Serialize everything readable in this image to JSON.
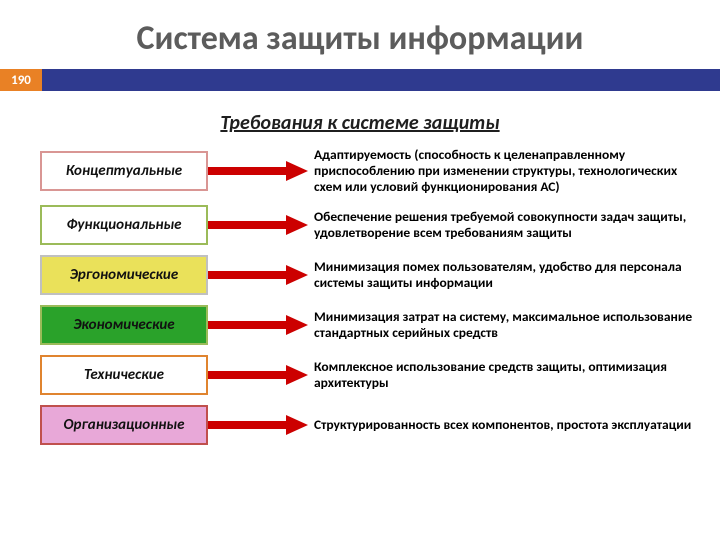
{
  "title": "Система защиты информации",
  "page_number": "190",
  "badge_bg": "#e98125",
  "badge_bar_bg": "#2f3a8f",
  "subtitle": "Требования к системе защиты",
  "arrow_color": "#cc0000",
  "rows": [
    {
      "label": "Концептуальные",
      "border": "#d99694",
      "fill": "#ffffff",
      "desc": "Адаптируемость (способность к целенаправленному приспособлению при изменении структуры, технологических схем или условий функционирования АС)"
    },
    {
      "label": "Функциональные",
      "border": "#9bbb59",
      "fill": "#ffffff",
      "desc": "Обеспечение решения требуемой совокупности задач защиты, удовлетворение всем требованиям защиты"
    },
    {
      "label": "Эргономические",
      "border": "#c0c0c0",
      "fill": "#eae15a",
      "desc": "Минимизация помех пользователям, удобство для персонала системы защиты информации"
    },
    {
      "label": "Экономические",
      "border": "#9bbb59",
      "fill": "#2aa22a",
      "desc": "Минимизация затрат на систему, максимальное использование стандартных серийных средств"
    },
    {
      "label": "Технические",
      "border": "#e0842f",
      "fill": "#ffffff",
      "desc": "Комплексное использование средств защиты, оптимизация архитектуры"
    },
    {
      "label": "Организационные",
      "border": "#c0504d",
      "fill": "#e8a8d8",
      "desc": "Структурированность всех компонентов, простота эксплуатации"
    }
  ]
}
